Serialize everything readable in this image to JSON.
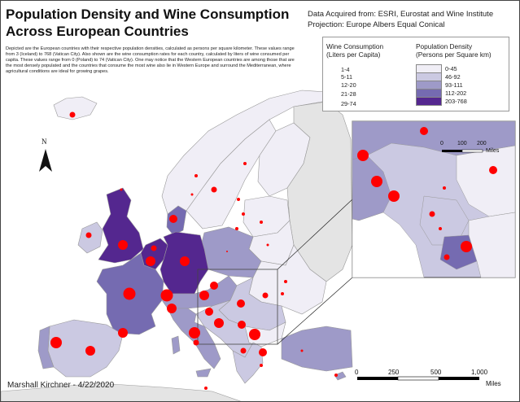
{
  "title": "Population Density and Wine Consumption Across European Countries",
  "title_line1": "Population Density and Wine Consumption",
  "title_line2": "Across European Countries",
  "description": "Depicted are the European countries with their respective population densities, calculated as persons per square kilometer. These values range from 3 (Iceland) to 768 (Vatican City). Also shown are the wine consumption rates for each country, calculated by liters of wine consumed per capita. These values range from 0 (Poland) to 74 (Vatican City). One may notice that the Western European countries are among those that are the most densely populated and the countries that consume the most wine also lie in Western Europe and surround the Mediterranean, where agricultural conditions are ideal for growing grapes.",
  "source_line1": "Data Acquired from: ESRI, Eurostat and  Wine Institute",
  "source_line2": "Projection: Europe Albers Equal Conical",
  "legend": {
    "wine_title_1": "Wine Consumption",
    "wine_title_2": "(Liters per Capita)",
    "wine_classes": [
      "1-4",
      "5-11",
      "12-20",
      "21-28",
      "29-74"
    ],
    "density_title_1": "Population Density",
    "density_title_2": "(Persons per Square km)",
    "density_classes": [
      "0-45",
      "46-92",
      "93-111",
      "112-202",
      "203-768"
    ],
    "density_colors": [
      "#f0eef6",
      "#cbc9e2",
      "#9e9ac8",
      "#756bb1",
      "#54278f"
    ],
    "dot_color": "#ff0000"
  },
  "author": "Marshall Kirchner - 4/22/2020",
  "north_label": "N",
  "scale_main": {
    "labels": [
      "0",
      "250",
      "500",
      "1,000"
    ],
    "unit": "Miles"
  },
  "scale_inset": {
    "labels": [
      "0",
      "100",
      "200"
    ],
    "unit": "Miles"
  },
  "colors": {
    "sea": "#ffffff",
    "no_data": "#e4e4e4",
    "border": "#888888"
  }
}
